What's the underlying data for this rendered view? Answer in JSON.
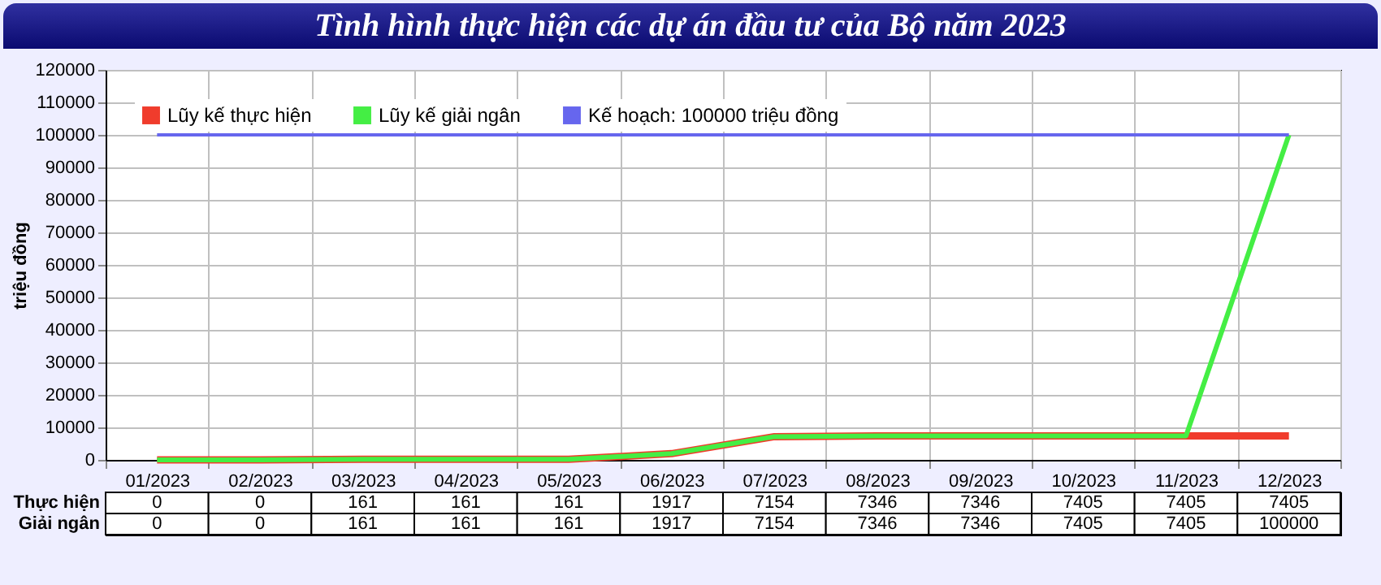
{
  "chart_data": {
    "type": "line",
    "title": "Tình hình thực hiện các dự án đầu tư của Bộ năm 2023",
    "ylabel": "triệu đồng",
    "categories": [
      "01/2023",
      "02/2023",
      "03/2023",
      "04/2023",
      "05/2023",
      "06/2023",
      "07/2023",
      "08/2023",
      "09/2023",
      "10/2023",
      "11/2023",
      "12/2023"
    ],
    "series": [
      {
        "name": "Lũy kế thực hiện",
        "color": "#f03c2c",
        "values": [
          0,
          0,
          161,
          161,
          161,
          1917,
          7154,
          7346,
          7346,
          7405,
          7405,
          7405
        ],
        "value_labels": [
          "0",
          "0",
          "161",
          "161",
          "161",
          "1917",
          "7154",
          "7346",
          "7346",
          "7405",
          "7405",
          "7405"
        ]
      },
      {
        "name": "Lũy kế giải ngân",
        "color": "#44ee44",
        "values": [
          0,
          0,
          161,
          161,
          161,
          1917,
          7154,
          7346,
          7346,
          7405,
          7405,
          100000
        ],
        "value_labels": [
          "0",
          "0",
          "161",
          "161",
          "161",
          "1917",
          "7154",
          "7346",
          "7346",
          "7405",
          "7405",
          "100000"
        ]
      },
      {
        "name": "Kế hoạch: 100000 triệu đồng",
        "color": "#6666ee",
        "values": [
          100000,
          100000,
          100000,
          100000,
          100000,
          100000,
          100000,
          100000,
          100000,
          100000,
          100000,
          100000
        ]
      }
    ],
    "annotations": [
      "Thực hiện",
      "Giải ngân"
    ],
    "ylim": [
      0,
      120000
    ],
    "yticks": [
      0,
      10000,
      20000,
      30000,
      40000,
      50000,
      60000,
      70000,
      80000,
      90000,
      100000,
      110000,
      120000
    ],
    "grid": true,
    "legend": "top left",
    "line_style": "solid",
    "marker": "none"
  }
}
